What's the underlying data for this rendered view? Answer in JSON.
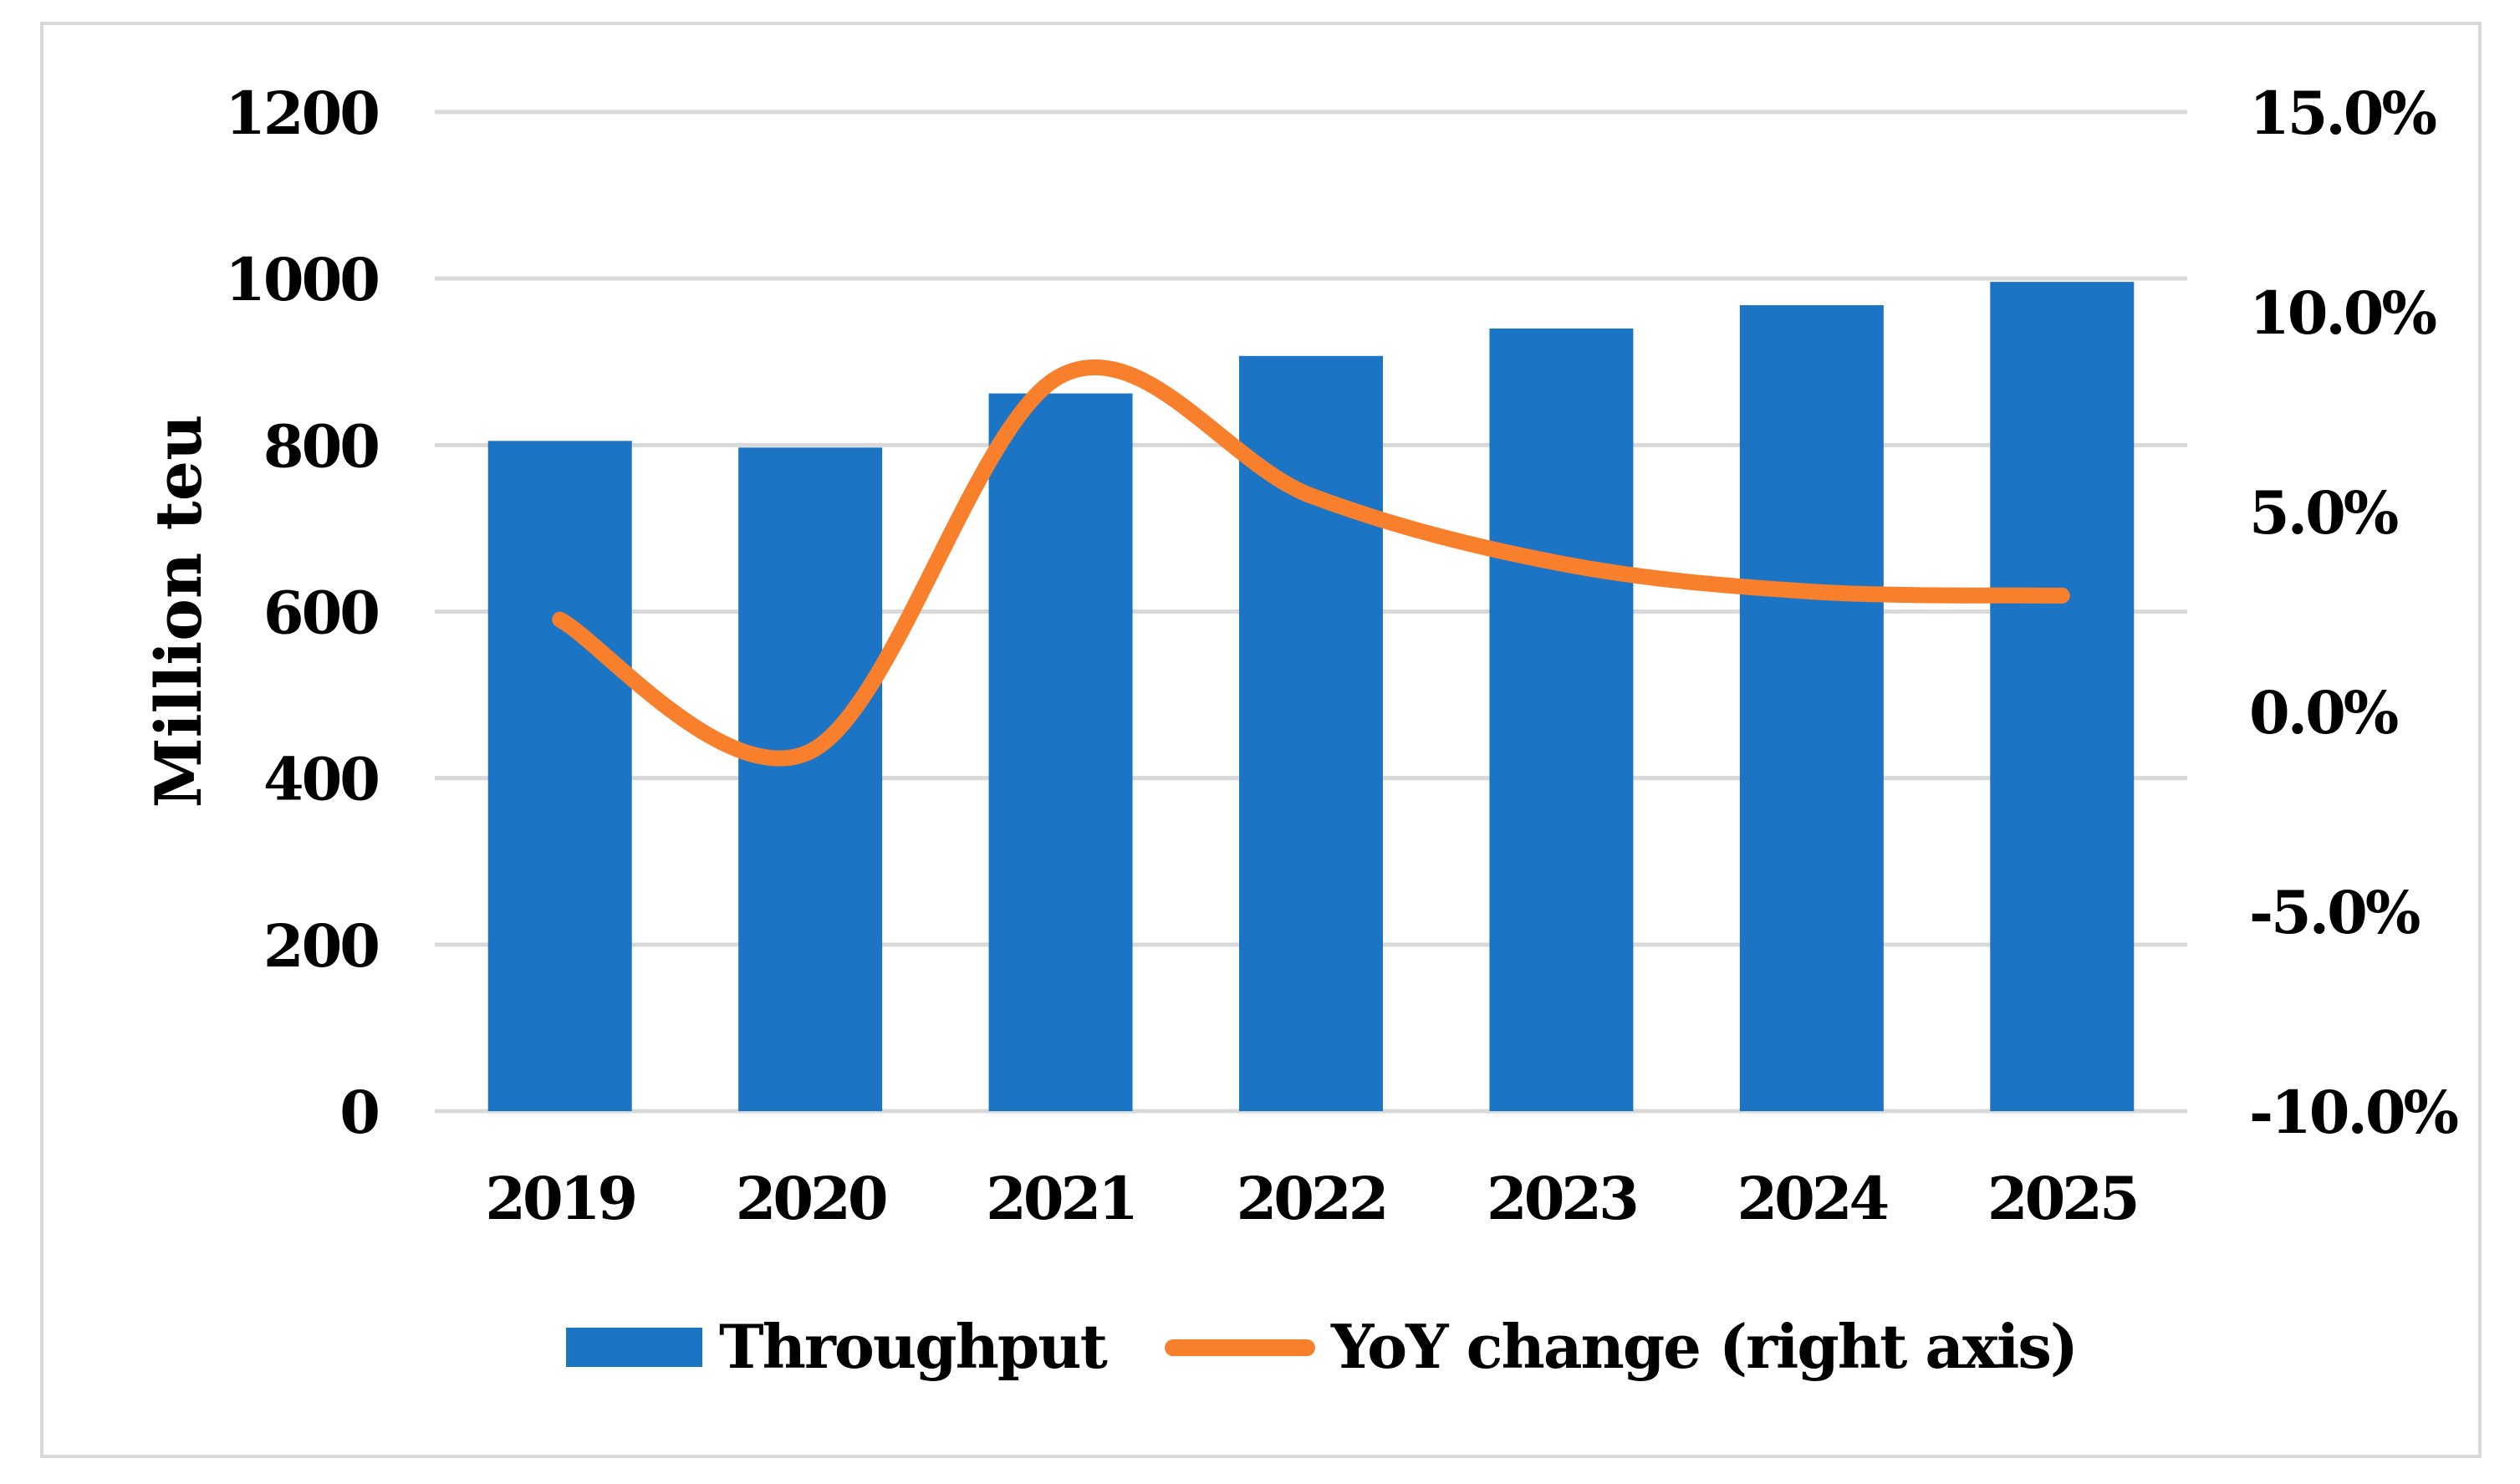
{
  "chart_data": {
    "type": "bar",
    "subtype": "combo-bar-line-dual-axis",
    "categories": [
      "2019",
      "2020",
      "2021",
      "2022",
      "2023",
      "2024",
      "2025"
    ],
    "series": [
      {
        "name": "Throughput",
        "type": "bar",
        "axis": "left",
        "values": [
          805,
          797,
          862,
          907,
          940,
          968,
          996
        ]
      },
      {
        "name": "YoY change (right axis)",
        "type": "line",
        "axis": "right",
        "values": [
          2.3,
          -1.0,
          8.4,
          5.4,
          3.7,
          3.0,
          2.9
        ]
      }
    ],
    "title": "",
    "xlabel": "",
    "ylabel": "Million teu",
    "left_axis": {
      "label": "Million teu",
      "min": 0,
      "max": 1200,
      "step": 200,
      "ticks": [
        "1200",
        "1000",
        "800",
        "600",
        "400",
        "200",
        "0"
      ]
    },
    "right_axis": {
      "min": -10,
      "max": 15,
      "step": 5,
      "ticks": [
        "15.0%",
        "10.0%",
        "5.0%",
        "0.0%",
        "-5.0%",
        "-10.0%"
      ]
    },
    "grid": true,
    "legend_position": "bottom",
    "legend": [
      {
        "label": "Throughput",
        "swatch": "bar"
      },
      {
        "label": "YoY change (right axis)",
        "swatch": "line"
      }
    ],
    "colors": {
      "bar": "#1B74C4",
      "line": "#F8802D",
      "gridline": "#D9D9D9",
      "frame": "#D8D8D8",
      "text": "#000000",
      "background": "#FFFFFF"
    }
  }
}
